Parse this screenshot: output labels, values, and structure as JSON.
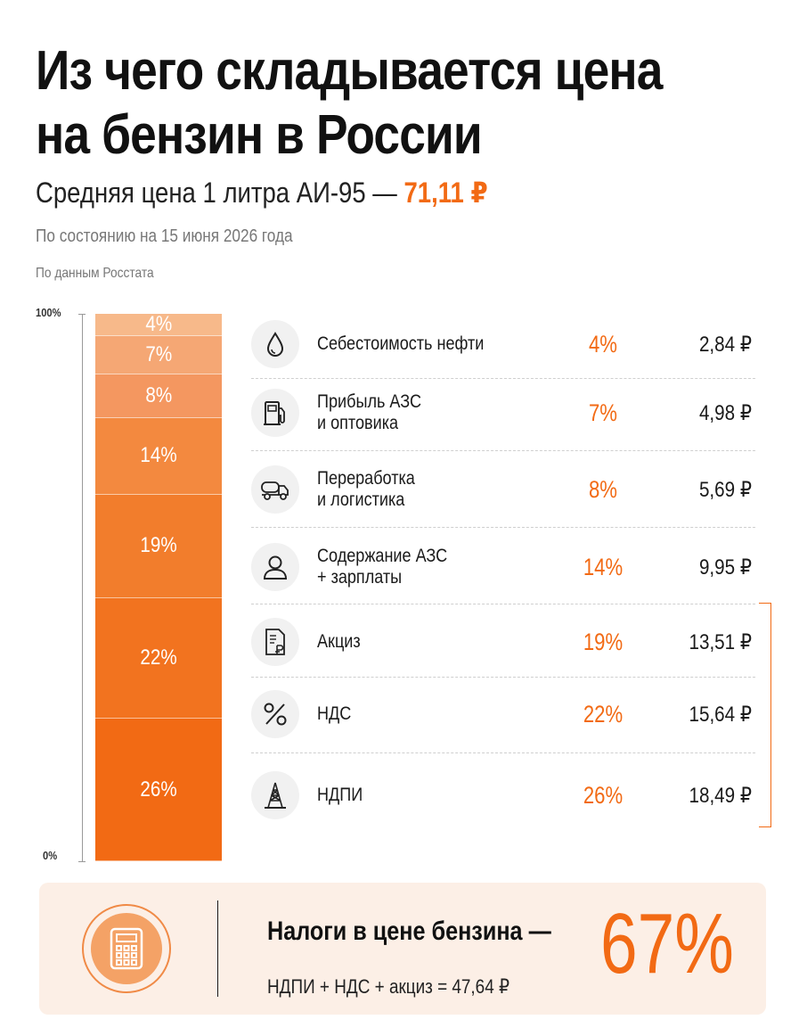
{
  "header": {
    "title": "Из чего складывается цена на бензин в России",
    "subtitle_prefix": "Средняя цена 1 литра АИ-95 — ",
    "subtitle_price": "71,11 ₽",
    "date_note": "По состоянию на 15 июня 2026 года",
    "source_note": "По данным Росстата"
  },
  "colors": {
    "accent": "#f26a14",
    "bar_shades": [
      "#f7b98a",
      "#f5a774",
      "#f49760",
      "#f3893f",
      "#f27d2c",
      "#f2731f",
      "#f26a14"
    ]
  },
  "chart_data": {
    "type": "bar",
    "stacked": true,
    "ylim": [
      0,
      100
    ],
    "axis_labels": {
      "top": "100%",
      "bottom": "0%"
    },
    "segments": [
      {
        "key": "oil",
        "label": "4%",
        "value": 4
      },
      {
        "key": "profit",
        "label": "7%",
        "value": 7
      },
      {
        "key": "refining",
        "label": "8%",
        "value": 8
      },
      {
        "key": "maintenance",
        "label": "14%",
        "value": 14
      },
      {
        "key": "excise",
        "label": "19%",
        "value": 19
      },
      {
        "key": "vat",
        "label": "22%",
        "value": 22
      },
      {
        "key": "ndpi",
        "label": "26%",
        "value": 26
      }
    ],
    "rows": [
      {
        "icon": "oil-drop-icon",
        "label": "Себестоимость нефти",
        "pct": "4%",
        "value": "2,84 ₽"
      },
      {
        "icon": "fuel-pump-icon",
        "label": "Прибыль АЗС\nи оптовика",
        "pct": "7%",
        "value": "4,98 ₽"
      },
      {
        "icon": "tanker-truck-icon",
        "label": "Переработка\nи логистика",
        "pct": "8%",
        "value": "5,69 ₽"
      },
      {
        "icon": "person-icon",
        "label": "Содержание АЗС\n+ зарплаты",
        "pct": "14%",
        "value": "9,95 ₽"
      },
      {
        "icon": "document-ruble-icon",
        "label": "Акциз",
        "pct": "19%",
        "value": "13,51 ₽"
      },
      {
        "icon": "percent-icon",
        "label": "НДС",
        "pct": "22%",
        "value": "15,64 ₽"
      },
      {
        "icon": "oil-rig-icon",
        "label": "НДПИ",
        "pct": "26%",
        "value": "18,49 ₽"
      }
    ]
  },
  "summary": {
    "icon": "calculator-icon",
    "title": "Налоги в цене бензина —",
    "formula": "НДПИ + НДС + акциз = 47,64 ₽",
    "percent": "67%"
  }
}
